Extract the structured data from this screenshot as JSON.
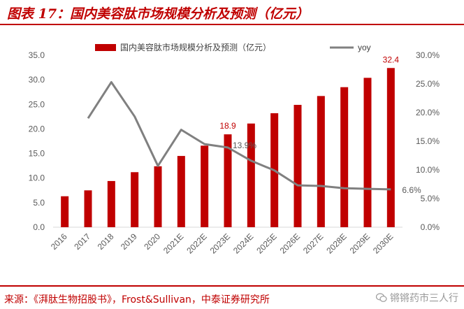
{
  "title": "图表 17：国内美容肽市场规模分析及预测（亿元）",
  "source": "来源：《湃肽生物招股书》，Frost&Sullivan，中泰证券研究所",
  "watermark": "锵锵药市三人行",
  "colors": {
    "bar": "#c00000",
    "line": "#808080",
    "accent": "#c00000",
    "label": "#595959"
  },
  "chart_data": {
    "type": "bar+line",
    "categories": [
      "2016",
      "2017",
      "2018",
      "2019",
      "2020",
      "2021E",
      "2022E",
      "2023E",
      "2024E",
      "2025E",
      "2026E",
      "2027E",
      "2028E",
      "2029E",
      "2030E"
    ],
    "series": [
      {
        "name": "国内美容肽市场规模分析及预测（亿元）",
        "type": "bar",
        "axis": "left",
        "values": [
          6.3,
          7.5,
          9.4,
          11.2,
          12.4,
          14.5,
          16.6,
          18.9,
          21.1,
          23.2,
          24.9,
          26.7,
          28.5,
          30.4,
          32.4
        ]
      },
      {
        "name": "yoy",
        "type": "line",
        "axis": "right",
        "values": [
          null,
          0.19,
          0.253,
          0.193,
          0.107,
          0.17,
          0.145,
          0.139,
          0.116,
          0.099,
          0.073,
          0.072,
          0.068,
          0.067,
          0.066
        ]
      }
    ],
    "left_axis": {
      "min": 0,
      "max": 35,
      "step": 5,
      "ticks": [
        "0.0",
        "5.0",
        "10.0",
        "15.0",
        "20.0",
        "25.0",
        "30.0",
        "35.0"
      ]
    },
    "right_axis": {
      "min": 0,
      "max": 0.3,
      "step": 0.05,
      "ticks": [
        "0.0%",
        "5.0%",
        "10.0%",
        "15.0%",
        "20.0%",
        "25.0%",
        "30.0%"
      ]
    },
    "data_labels": [
      {
        "category": "2023E",
        "series": "bar",
        "text": "18.9",
        "color": "#c00000"
      },
      {
        "category": "2030E",
        "series": "bar",
        "text": "32.4",
        "color": "#c00000"
      },
      {
        "category": "2023E",
        "series": "yoy",
        "text": "13.9%",
        "color": "#595959"
      },
      {
        "category": "2030E",
        "series": "yoy",
        "text": "6.6%",
        "color": "#595959"
      }
    ],
    "legend": {
      "position": "top"
    },
    "grid": false
  }
}
